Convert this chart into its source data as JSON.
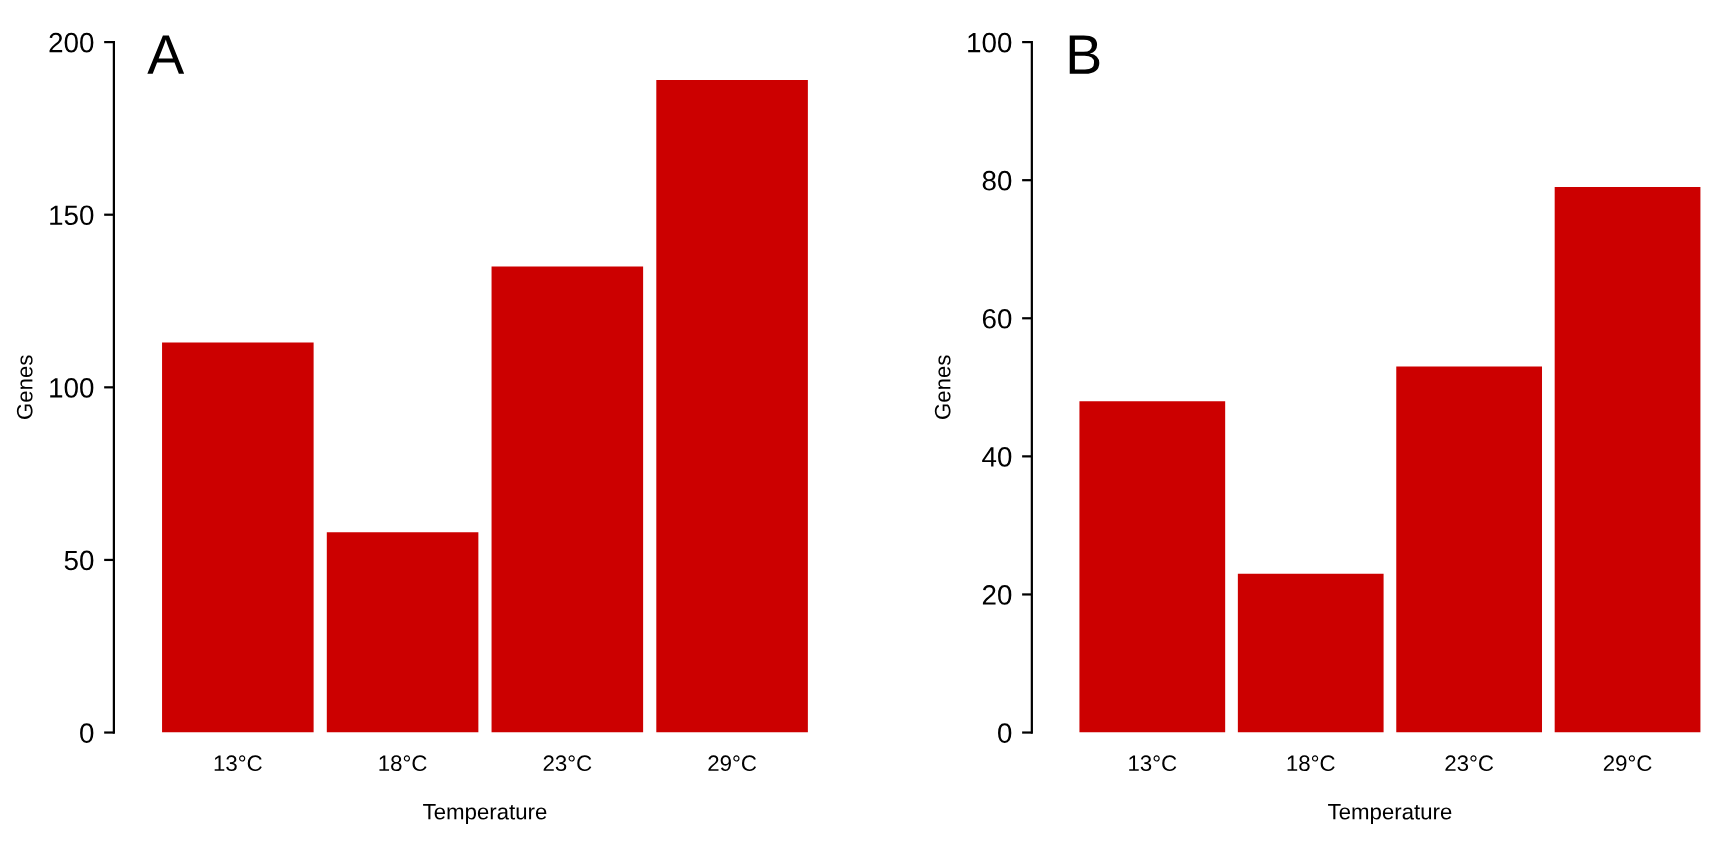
{
  "chart_data": [
    {
      "type": "bar",
      "title": "A",
      "xlabel": "Temperature",
      "ylabel": "Genes",
      "categories": [
        "13°C",
        "18°C",
        "23°C",
        "29°C"
      ],
      "values": [
        113,
        58,
        135,
        189
      ],
      "color": "#cc0000",
      "ylim": [
        0,
        200
      ],
      "yticks": [
        0,
        50,
        100,
        150,
        200
      ],
      "grid": false,
      "legend": false
    },
    {
      "type": "bar",
      "title": "B",
      "xlabel": "Temperature",
      "ylabel": "Genes",
      "categories": [
        "13°C",
        "18°C",
        "23°C",
        "29°C"
      ],
      "values": [
        48,
        23,
        53,
        79
      ],
      "color": "#cc0000",
      "ylim": [
        0,
        100
      ],
      "yticks": [
        0,
        20,
        40,
        60,
        80,
        100
      ],
      "grid": false,
      "legend": false
    }
  ]
}
